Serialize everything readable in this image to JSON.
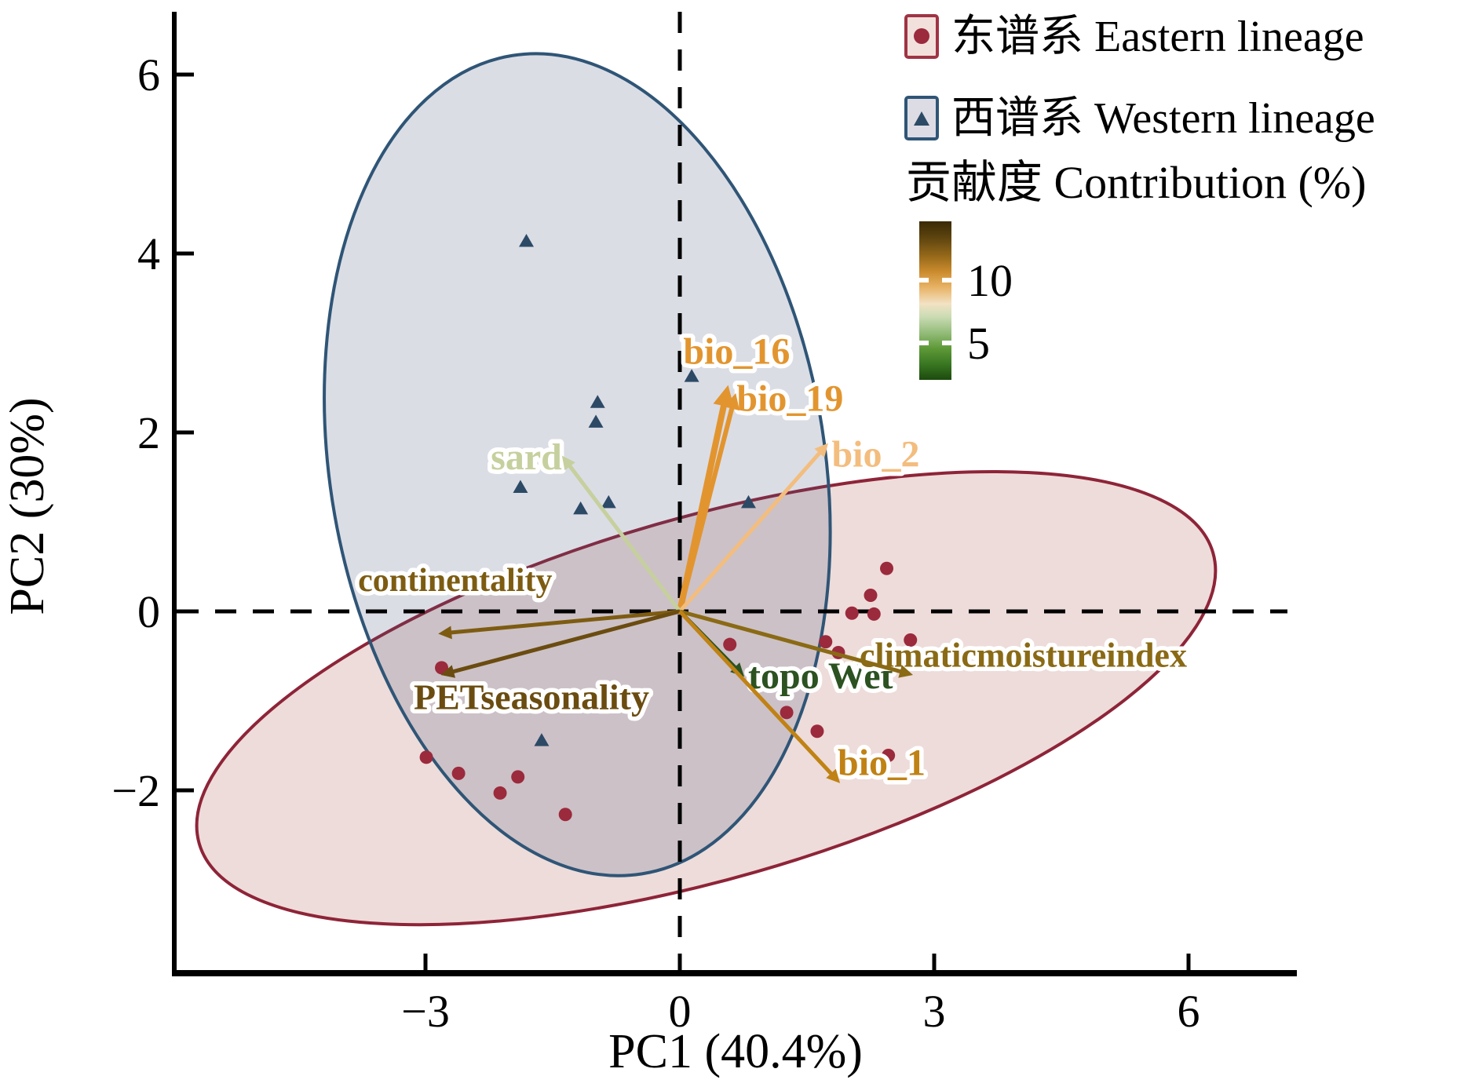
{
  "chart_data": {
    "type": "scatter",
    "subtype": "pca-biplot",
    "xlabel": "PC1 (40.4%)",
    "ylabel": "PC2 (30%)",
    "xlim": [
      -5.96,
      7.28
    ],
    "ylim": [
      -4.04,
      6.7
    ],
    "grid": false,
    "x_ticks": {
      "values": [
        -3,
        0,
        3,
        6
      ],
      "labels": [
        "−3",
        "0",
        "3",
        "6"
      ]
    },
    "y_ticks": {
      "values": [
        6,
        4,
        2,
        0,
        -2
      ],
      "labels": [
        "6",
        "4",
        "2",
        "0",
        "−2"
      ]
    },
    "reference_lines": {
      "vline_x": 0,
      "hline_y": 0,
      "style": "dashed",
      "color": "#000000"
    },
    "series": [
      {
        "name": "东谱系 Eastern lineage",
        "marker": "circle",
        "color": "#9b2a3c",
        "points": [
          [
            2.44,
            0.48
          ],
          [
            2.25,
            0.18
          ],
          [
            2.03,
            -0.02
          ],
          [
            2.29,
            -0.03
          ],
          [
            1.72,
            -0.34
          ],
          [
            1.87,
            -0.46
          ],
          [
            2.72,
            -0.32
          ],
          [
            0.59,
            -0.37
          ],
          [
            1.26,
            -1.13
          ],
          [
            1.62,
            -1.34
          ],
          [
            2.46,
            -1.61
          ],
          [
            -2.81,
            -0.63
          ],
          [
            -2.99,
            -1.63
          ],
          [
            -2.61,
            -1.81
          ],
          [
            -1.91,
            -1.85
          ],
          [
            -2.12,
            -2.03
          ],
          [
            -1.35,
            -2.27
          ]
        ]
      },
      {
        "name": "西谱系 Western lineage",
        "marker": "triangle",
        "color": "#2c4a66",
        "points": [
          [
            -1.81,
            4.14
          ],
          [
            -0.97,
            2.34
          ],
          [
            -0.99,
            2.12
          ],
          [
            0.14,
            2.63
          ],
          [
            -1.88,
            1.39
          ],
          [
            -1.17,
            1.15
          ],
          [
            -0.84,
            1.22
          ],
          [
            0.81,
            1.22
          ],
          [
            -1.63,
            -1.44
          ]
        ]
      }
    ],
    "loadings": [
      {
        "name": "bio_16",
        "tip": [
          0.57,
          2.53
        ],
        "color": "#e2952f",
        "width": 8,
        "label_pos": [
          0.67,
          2.91
        ],
        "font_size": 48
      },
      {
        "name": "bio_19",
        "tip": [
          0.66,
          2.44
        ],
        "color": "#e2952f",
        "width": 6,
        "label_pos": [
          1.3,
          2.38
        ],
        "font_size": 48
      },
      {
        "name": "bio_2",
        "tip": [
          1.75,
          1.88
        ],
        "color": "#f3bd7e",
        "width": 5,
        "label_pos": [
          2.31,
          1.76
        ],
        "font_size": 48
      },
      {
        "name": "sard",
        "tip": [
          -1.39,
          1.74
        ],
        "color": "#c6d09e",
        "width": 5,
        "label_pos": [
          -1.81,
          1.73
        ],
        "font_size": 48
      },
      {
        "name": "continentality",
        "tip": [
          -2.85,
          -0.25
        ],
        "color": "#7d5c12",
        "width": 5,
        "label_pos": [
          -2.65,
          0.37
        ],
        "font_size": 42
      },
      {
        "name": "PETseasonality",
        "tip": [
          -2.82,
          -0.71
        ],
        "color": "#6b4c10",
        "width": 5,
        "label_pos": [
          -1.75,
          -0.95
        ],
        "font_size": 46
      },
      {
        "name": "topo Wet",
        "tip": [
          0.76,
          -0.73
        ],
        "color": "#2b5220",
        "width": 5,
        "label_pos": [
          1.66,
          -0.72
        ],
        "font_size": 48
      },
      {
        "name": "climaticmoistureindex",
        "tip": [
          2.75,
          -0.71
        ],
        "color": "#8a6a15",
        "width": 5,
        "label_pos": [
          4.05,
          -0.48
        ],
        "font_size": 44
      },
      {
        "name": "bio_1",
        "tip": [
          1.89,
          -1.92
        ],
        "color": "#c08214",
        "width": 5,
        "label_pos": [
          2.38,
          -1.69
        ],
        "font_size": 48
      }
    ],
    "ellipses": [
      {
        "name": "eastern-ellipse",
        "center": [
          0.31,
          -0.97
        ],
        "rx": 6.22,
        "ry": 2.02,
        "rotation_deg": -16,
        "stroke": "#8e2438",
        "fill": "rgba(160,70,60,0.19)"
      },
      {
        "name": "western-ellipse",
        "center": [
          -1.21,
          1.64
        ],
        "rx": 2.92,
        "ry": 4.63,
        "rotation_deg": -9,
        "stroke": "#2f5576",
        "fill": "rgba(75,85,125,0.20)"
      }
    ],
    "legend": {
      "position": "top-right",
      "items": [
        {
          "label": "东谱系 Eastern lineage",
          "marker": "circle",
          "marker_color": "#9b2a3c",
          "box_stroke": "#a03344",
          "box_fill": "#f2e0dc"
        },
        {
          "label": "西谱系 Western lineage",
          "marker": "triangle",
          "marker_color": "#2c4a66",
          "box_stroke": "#2f5576",
          "box_fill": "#dddce4"
        }
      ]
    },
    "colorbar": {
      "title": "贡献度 Contribution (%)",
      "ticks": [
        {
          "label": "10",
          "offset": 0.371
        },
        {
          "label": "5",
          "offset": 0.767
        }
      ],
      "gradient": [
        {
          "offset": 0.0,
          "color": "#3a2a06"
        },
        {
          "offset": 0.1,
          "color": "#5c430e"
        },
        {
          "offset": 0.22,
          "color": "#96691a"
        },
        {
          "offset": 0.32,
          "color": "#cc8c2e"
        },
        {
          "offset": 0.42,
          "color": "#e8b468"
        },
        {
          "offset": 0.52,
          "color": "#f2e2c4"
        },
        {
          "offset": 0.6,
          "color": "#cbdcb4"
        },
        {
          "offset": 0.7,
          "color": "#95bd7c"
        },
        {
          "offset": 0.8,
          "color": "#5f9a38"
        },
        {
          "offset": 0.9,
          "color": "#397722"
        },
        {
          "offset": 1.0,
          "color": "#1c4a0e"
        }
      ]
    }
  }
}
